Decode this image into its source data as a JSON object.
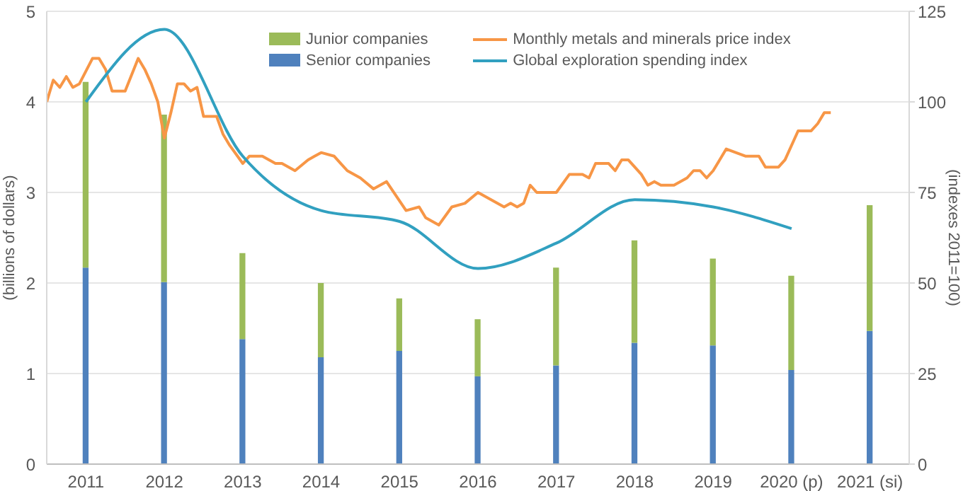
{
  "chart_data": {
    "type": "bar",
    "stacked": true,
    "ylabel": "(billions of dollars)",
    "y2label": "(indexes 2011=100)",
    "x": [
      "2011-07",
      "2012-07",
      "2013-07",
      "2014-07",
      "2015-07",
      "2016-07",
      "2017-07",
      "2018-07",
      "2019-07",
      "2020-07",
      "2021-07"
    ],
    "xlim": [
      "2011-01",
      "2022-01"
    ],
    "xticks": [
      {
        "value": "2011-07",
        "label": "2011"
      },
      {
        "value": "2012-07",
        "label": "2012"
      },
      {
        "value": "2013-07",
        "label": "2013"
      },
      {
        "value": "2014-07",
        "label": "2014"
      },
      {
        "value": "2015-07",
        "label": "2015"
      },
      {
        "value": "2016-07",
        "label": "2016"
      },
      {
        "value": "2017-07",
        "label": "2017"
      },
      {
        "value": "2018-07",
        "label": "2018"
      },
      {
        "value": "2019-07",
        "label": "2019"
      },
      {
        "value": "2020-07",
        "label": "2020 (p)"
      },
      {
        "value": "2021-07",
        "label": "2021 (si)"
      }
    ],
    "ylim": [
      0,
      5
    ],
    "yticks": [
      0,
      1,
      2,
      3,
      4,
      5
    ],
    "y2lim": [
      0,
      125
    ],
    "y2ticks": [
      0,
      25,
      50,
      75,
      100,
      125
    ],
    "grid": "y",
    "legend": "top",
    "series": [
      {
        "name": "Senior companies",
        "color": "#4f81bd",
        "values": [
          2.17,
          2.01,
          1.38,
          1.18,
          1.25,
          0.97,
          1.09,
          1.34,
          1.31,
          1.04,
          1.47
        ]
      },
      {
        "name": "Junior companies",
        "color": "#9bbb59",
        "values": [
          2.05,
          1.85,
          0.95,
          0.82,
          0.58,
          0.63,
          1.08,
          1.13,
          0.96,
          1.04,
          1.39
        ]
      },
      {
        "name": "Monthly metals and minerals price index",
        "type": "line",
        "axis": "y2",
        "color": "#f79646",
        "x": [
          "2011-01",
          "2011-02",
          "2011-03",
          "2011-04",
          "2011-05",
          "2011-06",
          "2011-08",
          "2011-09",
          "2011-10",
          "2011-11",
          "2011-12",
          "2012-01",
          "2012-03",
          "2012-04",
          "2012-05",
          "2012-06",
          "2012-07",
          "2012-08",
          "2012-09",
          "2012-10",
          "2012-11",
          "2012-12",
          "2013-01",
          "2013-03",
          "2013-04",
          "2013-05",
          "2013-07",
          "2013-08",
          "2013-10",
          "2013-12",
          "2014-01",
          "2014-03",
          "2014-05",
          "2014-06",
          "2014-07",
          "2014-09",
          "2014-10",
          "2014-11",
          "2015-01",
          "2015-03",
          "2015-05",
          "2015-08",
          "2015-10",
          "2015-11",
          "2016-01",
          "2016-03",
          "2016-05",
          "2016-07",
          "2016-09",
          "2016-11",
          "2016-12",
          "2017-01",
          "2017-02",
          "2017-03",
          "2017-04",
          "2017-05",
          "2017-07",
          "2017-09",
          "2017-11",
          "2017-12",
          "2018-01",
          "2018-03",
          "2018-04",
          "2018-05",
          "2018-06",
          "2018-08",
          "2018-09",
          "2018-10",
          "2018-11",
          "2019-01",
          "2019-03",
          "2019-04",
          "2019-05",
          "2019-06",
          "2019-07",
          "2019-09",
          "2019-12",
          "2020-02",
          "2020-03",
          "2020-05",
          "2020-06",
          "2020-08",
          "2020-10",
          "2020-11",
          "2020-12",
          "2021-01"
        ],
        "values": [
          100,
          106,
          104,
          107,
          104,
          105,
          112,
          112,
          109,
          103,
          103,
          103,
          112,
          109,
          105,
          100,
          90,
          97,
          105,
          105,
          103,
          104,
          96,
          96,
          91,
          88,
          83,
          85,
          85,
          83,
          83,
          81,
          84,
          85,
          86,
          85,
          83,
          81,
          79,
          76,
          78,
          70,
          71,
          68,
          66,
          71,
          72,
          75,
          73,
          71,
          72,
          71,
          72,
          77,
          75,
          75,
          75,
          80,
          80,
          79,
          83,
          83,
          81,
          84,
          84,
          80,
          77,
          78,
          77,
          77,
          79,
          81,
          81,
          79,
          81,
          87,
          85,
          85,
          82,
          82,
          84,
          92,
          92,
          94,
          97,
          97
        ]
      },
      {
        "name": "Global exploration spending index",
        "type": "line",
        "axis": "y2",
        "color": "#31a0c0",
        "values": [
          100,
          120,
          85,
          70,
          67,
          54,
          61,
          73,
          71,
          65,
          null
        ]
      }
    ]
  }
}
